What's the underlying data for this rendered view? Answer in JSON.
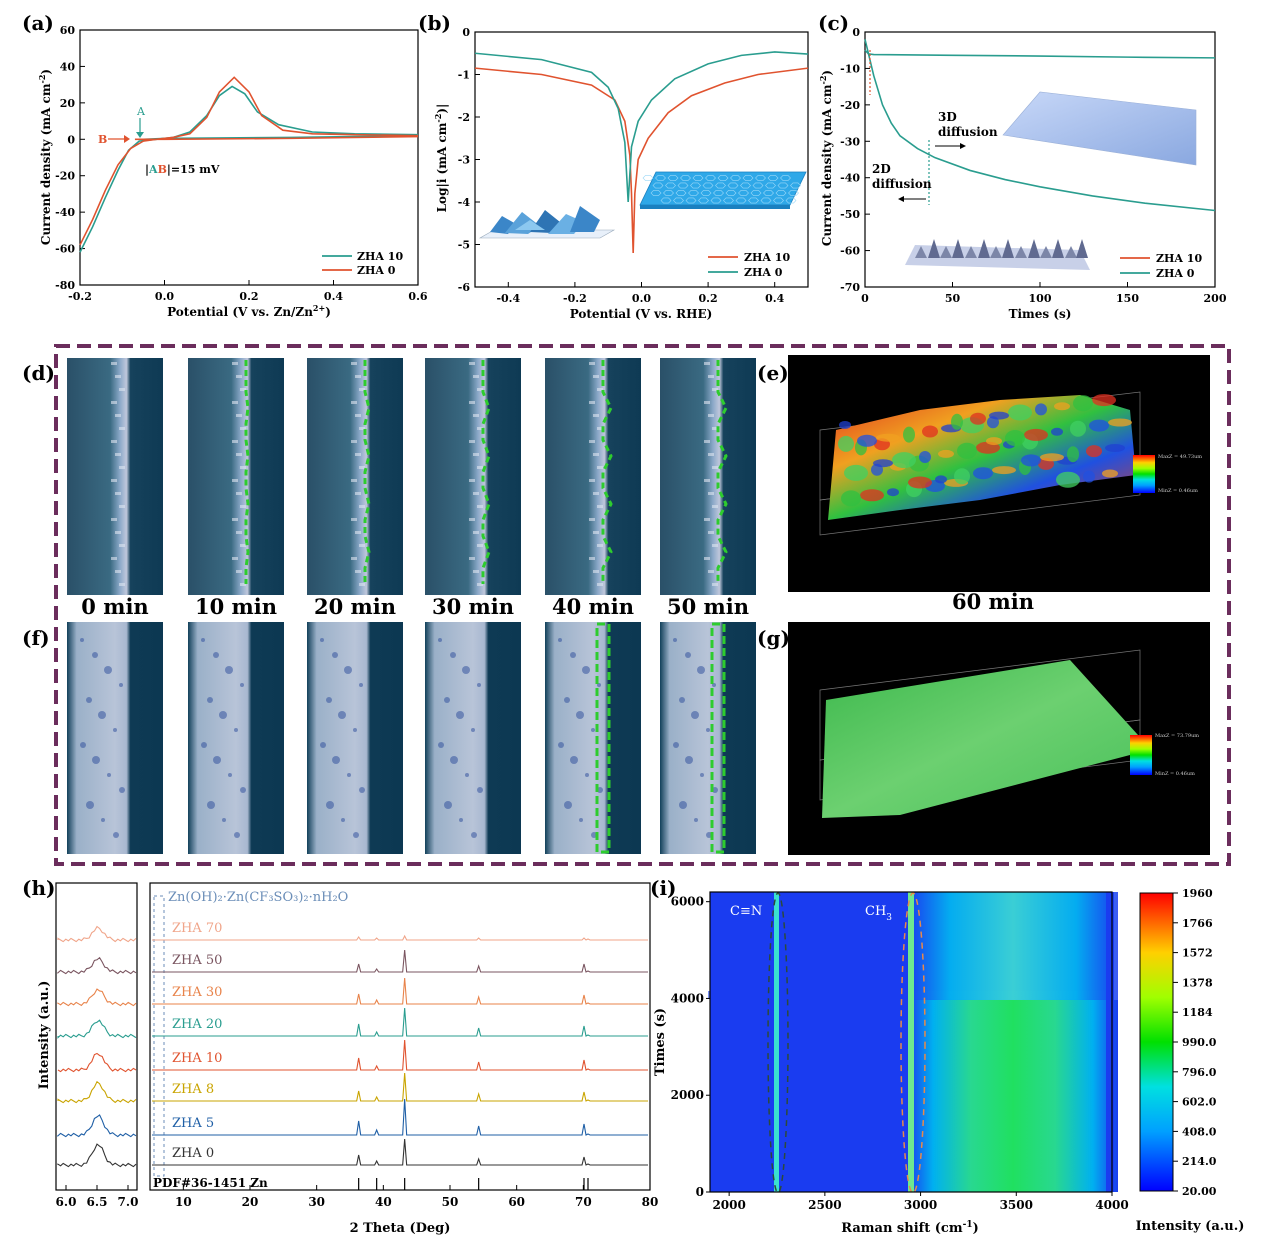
{
  "panel_letters": {
    "a": "(a)",
    "b": "(b)",
    "c": "(c)",
    "d": "(d)",
    "e": "(e)",
    "f": "(f)",
    "g": "(g)",
    "h": "(h)",
    "i": "(i)"
  },
  "colors": {
    "zha10_ac": "#2a9d8f",
    "zha0_ac": "#e0532f",
    "zha10_b": "#e0532f",
    "zha0_b": "#2a9d8f",
    "purple_frame": "#6b2d5c",
    "green_dash": "#2ecc2e"
  },
  "chart_data": [
    {
      "id": "a",
      "type": "line",
      "xlabel": "Potential (V vs. Zn/Zn",
      "xlabel_sup": "2+",
      "xlabel_tail": ")",
      "ylabel": "Current density (mA cm",
      "ylabel_sup": "-2",
      "ylabel_tail": ")",
      "xlim": [
        -0.2,
        0.6
      ],
      "ylim": [
        -80,
        60
      ],
      "xticks": [
        "-0.2",
        "0.0",
        "0.2",
        "0.4",
        "0.6"
      ],
      "yticks": [
        "-80",
        "-60",
        "-40",
        "-20",
        "0",
        "20",
        "40",
        "60"
      ],
      "annotations": {
        "A": "A",
        "B": "B",
        "ab_prefix": "|",
        "ab_a": "A",
        "ab_b": "B",
        "ab_suffix": "|=15 mV"
      },
      "series": [
        {
          "name": "ZHA 10",
          "points": [
            [
              -0.2,
              -62
            ],
            [
              -0.17,
              -48
            ],
            [
              -0.14,
              -32
            ],
            [
              -0.11,
              -17
            ],
            [
              -0.085,
              -6
            ],
            [
              -0.06,
              -1
            ],
            [
              -0.02,
              0
            ],
            [
              0.02,
              1
            ],
            [
              0.06,
              4
            ],
            [
              0.1,
              13
            ],
            [
              0.13,
              24
            ],
            [
              0.16,
              29
            ],
            [
              0.19,
              25
            ],
            [
              0.22,
              15
            ],
            [
              0.27,
              8
            ],
            [
              0.35,
              4
            ],
            [
              0.45,
              3
            ],
            [
              0.6,
              2.5
            ]
          ],
          "return": [
            [
              0.6,
              2
            ],
            [
              0.3,
              1
            ],
            [
              0.0,
              0.5
            ],
            [
              -0.05,
              0
            ]
          ]
        },
        {
          "name": "ZHA 0",
          "points": [
            [
              -0.2,
              -58
            ],
            [
              -0.17,
              -44
            ],
            [
              -0.14,
              -28
            ],
            [
              -0.11,
              -14
            ],
            [
              -0.08,
              -5
            ],
            [
              -0.05,
              -1
            ],
            [
              -0.02,
              0
            ],
            [
              0.02,
              1
            ],
            [
              0.06,
              3
            ],
            [
              0.1,
              12
            ],
            [
              0.13,
              26
            ],
            [
              0.165,
              34
            ],
            [
              0.2,
              26
            ],
            [
              0.23,
              13
            ],
            [
              0.28,
              5
            ],
            [
              0.35,
              3
            ],
            [
              0.45,
              2.5
            ],
            [
              0.6,
              2
            ]
          ],
          "return": [
            [
              0.6,
              1.5
            ],
            [
              0.3,
              0.5
            ],
            [
              0.0,
              0
            ],
            [
              -0.07,
              0
            ]
          ]
        }
      ]
    },
    {
      "id": "b",
      "type": "line",
      "xlabel": "Potential (V vs. RHE)",
      "ylabel": "Log|i (mA cm",
      "ylabel_sup": "-2",
      "ylabel_tail": ")|",
      "xlim": [
        -0.5,
        0.5
      ],
      "ylim": [
        -6,
        0
      ],
      "xticks": [
        "-0.4",
        "-0.2",
        "0.0",
        "0.2",
        "0.4"
      ],
      "yticks": [
        "-6",
        "-5",
        "-4",
        "-3",
        "-2",
        "-1",
        "0"
      ],
      "series": [
        {
          "name": "ZHA 10",
          "points": [
            [
              -0.5,
              -0.85
            ],
            [
              -0.3,
              -1.0
            ],
            [
              -0.15,
              -1.25
            ],
            [
              -0.08,
              -1.6
            ],
            [
              -0.05,
              -2.1
            ],
            [
              -0.035,
              -2.9
            ],
            [
              -0.03,
              -3.8
            ],
            [
              -0.025,
              -5.2
            ],
            [
              -0.02,
              -3.8
            ],
            [
              -0.01,
              -3.0
            ],
            [
              0.02,
              -2.5
            ],
            [
              0.08,
              -1.9
            ],
            [
              0.15,
              -1.5
            ],
            [
              0.25,
              -1.2
            ],
            [
              0.35,
              -1.0
            ],
            [
              0.5,
              -0.85
            ]
          ]
        },
        {
          "name": "ZHA 0",
          "points": [
            [
              -0.5,
              -0.5
            ],
            [
              -0.3,
              -0.65
            ],
            [
              -0.15,
              -0.95
            ],
            [
              -0.1,
              -1.3
            ],
            [
              -0.07,
              -1.8
            ],
            [
              -0.05,
              -2.6
            ],
            [
              -0.04,
              -4.0
            ],
            [
              -0.03,
              -2.7
            ],
            [
              -0.01,
              -2.1
            ],
            [
              0.03,
              -1.6
            ],
            [
              0.1,
              -1.1
            ],
            [
              0.2,
              -0.75
            ],
            [
              0.3,
              -0.55
            ],
            [
              0.4,
              -0.47
            ],
            [
              0.5,
              -0.52
            ]
          ]
        }
      ]
    },
    {
      "id": "c",
      "type": "line",
      "xlabel": "Times (s)",
      "ylabel": "Current density (mA cm",
      "ylabel_sup": "-2",
      "ylabel_tail": ")",
      "xlim": [
        0,
        200
      ],
      "ylim": [
        -70,
        0
      ],
      "xticks": [
        "0",
        "50",
        "100",
        "150",
        "200"
      ],
      "yticks": [
        "0",
        "-10",
        "-20",
        "-30",
        "-40",
        "-50",
        "-60",
        "-70"
      ],
      "annotations": {
        "d3_line1": "3D",
        "d3_line2": "diffusion",
        "d2_line1": "2D",
        "d2_line2": "diffusion"
      },
      "series": [
        {
          "name": "ZHA 10",
          "points": [
            [
              0,
              -5
            ],
            [
              2,
              -6
            ],
            [
              5,
              -6.2
            ],
            [
              50,
              -6.4
            ],
            [
              100,
              -6.6
            ],
            [
              150,
              -6.9
            ],
            [
              200,
              -7.1
            ]
          ]
        },
        {
          "name": "ZHA 0",
          "points": [
            [
              0,
              -2
            ],
            [
              2,
              -6
            ],
            [
              5,
              -12
            ],
            [
              10,
              -20
            ],
            [
              15,
              -25
            ],
            [
              20,
              -28.5
            ],
            [
              30,
              -32
            ],
            [
              40,
              -34.5
            ],
            [
              60,
              -38
            ],
            [
              80,
              -40.5
            ],
            [
              100,
              -42.5
            ],
            [
              130,
              -45
            ],
            [
              160,
              -47
            ],
            [
              200,
              -49
            ]
          ]
        }
      ]
    },
    {
      "id": "h",
      "type": "line",
      "xlabel": "2 Theta (Deg)",
      "ylabel": "Intensity (a.u.)",
      "xlim": [
        5,
        80
      ],
      "xticks": [
        "10",
        "20",
        "30",
        "40",
        "50",
        "60",
        "70",
        "80"
      ],
      "inset_xticks": [
        "6.0",
        "6.5",
        "7.0"
      ],
      "annotation": "Zn(OH)₂·Zn(CF₃SO₃)₂·nH₂O",
      "reference": "PDF#36-1451 Zn",
      "series": [
        {
          "name": "ZHA 70",
          "color": "#f0a58a"
        },
        {
          "name": "ZHA 50",
          "color": "#7a5560"
        },
        {
          "name": "ZHA 30",
          "color": "#e8834a"
        },
        {
          "name": "ZHA 20",
          "color": "#2a9d8f"
        },
        {
          "name": "ZHA 10",
          "color": "#e0532f"
        },
        {
          "name": "ZHA 8",
          "color": "#c9a400"
        },
        {
          "name": "ZHA 5",
          "color": "#1f5fa6"
        },
        {
          "name": "ZHA 0",
          "color": "#333333"
        }
      ],
      "peaks": [
        36.3,
        39.0,
        43.2,
        54.3,
        70.1,
        70.7
      ]
    },
    {
      "id": "i",
      "type": "heatmap",
      "xlabel": "Raman shift (cm",
      "xlabel_sup": "-1",
      "xlabel_tail": ")",
      "ylabel": "Times (s)",
      "xlim": [
        1900,
        4000
      ],
      "ylim": [
        0,
        6200
      ],
      "xticks": [
        "2000",
        "2500",
        "3000",
        "3500",
        "4000"
      ],
      "yticks": [
        "0",
        "2000",
        "4000",
        "6000"
      ],
      "labels": {
        "cn": "C≡N",
        "ch3_main": "CH",
        "ch3_sub": "3"
      },
      "colorbar": {
        "label": "Intensity (a.u.)",
        "ticks": [
          "1960",
          "1766",
          "1572",
          "1378",
          "1184",
          "990.0",
          "796.0",
          "602.0",
          "408.0",
          "214.0",
          "20.00"
        ]
      }
    }
  ],
  "images": {
    "d_times": [
      "0 min",
      "10 min",
      "20 min",
      "30 min",
      "40 min",
      "50 min"
    ],
    "e_caption": "60 min",
    "e_max": "MaxZ = 49.73um",
    "e_min": "MinZ = 0.46um",
    "g_max": "MaxZ = 73.79um",
    "g_min": "MinZ = 0.46um"
  }
}
